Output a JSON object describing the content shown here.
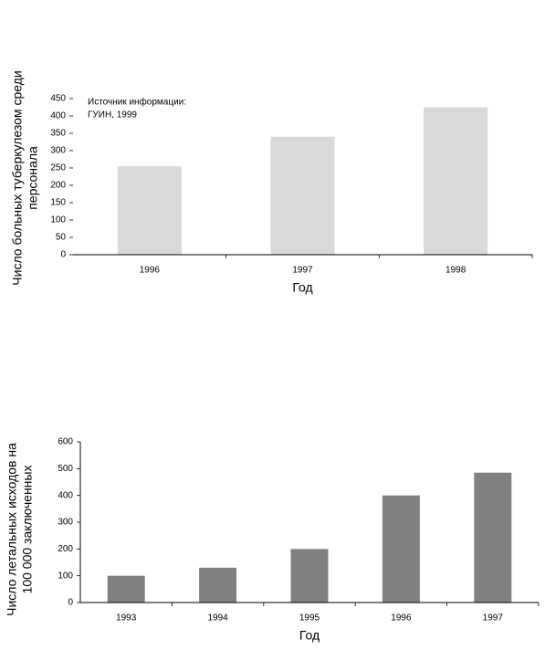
{
  "chart_data": [
    {
      "type": "bar",
      "ylabel": [
        "Число больных туберкулезом среди",
        "персонала"
      ],
      "xlabel": "Год",
      "annotation": [
        "Источник информации:",
        "ГУИН, 1999"
      ],
      "categories": [
        "1996",
        "1997",
        "1998"
      ],
      "values": [
        255,
        340,
        425
      ],
      "color": "#d9d9d9",
      "ylim": [
        0,
        450
      ],
      "yticks": [
        0,
        50,
        100,
        150,
        200,
        250,
        300,
        350,
        400,
        450
      ]
    },
    {
      "type": "bar",
      "ylabel": [
        "Число летальных исходов на",
        "100 000 заключенных"
      ],
      "xlabel": "Год",
      "categories": [
        "1993",
        "1994",
        "1995",
        "1996",
        "1997"
      ],
      "values": [
        100,
        130,
        200,
        400,
        485
      ],
      "color": "#808080",
      "ylim": [
        0,
        600
      ],
      "yticks": [
        0,
        100,
        200,
        300,
        400,
        500,
        600
      ]
    }
  ]
}
